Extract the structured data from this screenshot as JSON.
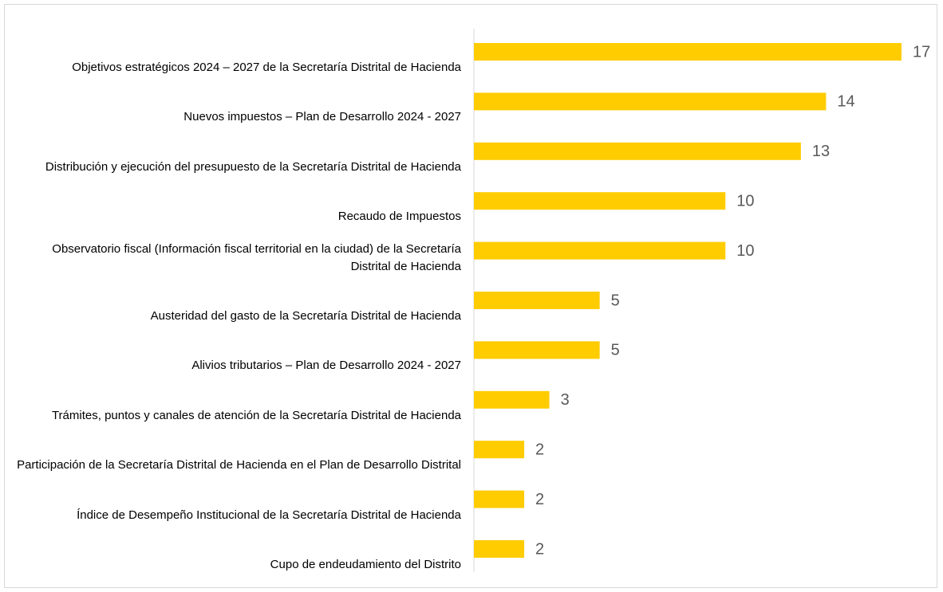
{
  "chart_data": {
    "type": "hbar",
    "categories": [
      "Objetivos estratégicos 2024 – 2027 de la Secretaría Distrital de Hacienda",
      "Nuevos impuestos – Plan de Desarrollo 2024 - 2027",
      "Distribución y ejecución del presupuesto de la Secretaría Distrital de Hacienda",
      "Recaudo de Impuestos",
      "Observatorio fiscal (Información fiscal territorial en la ciudad) de la Secretaría Distrital de Hacienda",
      "Austeridad del gasto de la Secretaría Distrital de Hacienda",
      "Alivios tributarios – Plan de Desarrollo 2024 - 2027",
      "Trámites, puntos y canales de atención de la Secretaría Distrital de Hacienda",
      "Participación de la Secretaría Distrital de Hacienda en el Plan de Desarrollo Distrital",
      "Índice de Desempeño Institucional de la Secretaría Distrital de Hacienda",
      "Cupo de endeudamiento del Distrito"
    ],
    "values": [
      17,
      14,
      13,
      10,
      10,
      5,
      5,
      3,
      2,
      2,
      2
    ],
    "color": "#ffcc00"
  }
}
